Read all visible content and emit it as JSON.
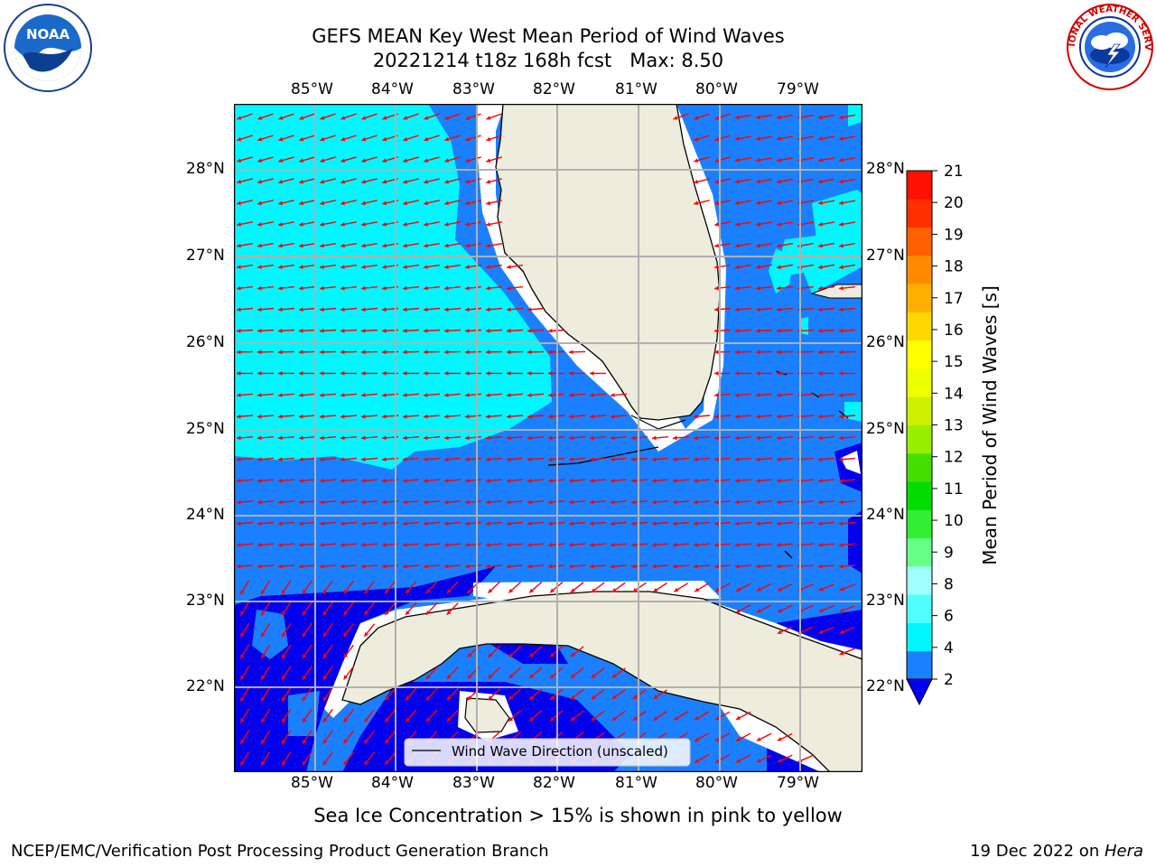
{
  "title": {
    "line1": "GEFS MEAN Key West Mean Period of Wind Waves",
    "line2": "20221214 t18z 168h fcst   Max: 8.50"
  },
  "logos": {
    "noaa_text": "NOAA",
    "noaa_ring": "NATIONAL OCEANIC AND ATMOSPHERIC ADMINISTRATION · U.S. DEPARTMENT OF COMMERCE",
    "nws_ring": "NATIONAL WEATHER SERVICE"
  },
  "map": {
    "lon_labels": [
      "85°W",
      "84°W",
      "83°W",
      "82°W",
      "81°W",
      "80°W",
      "79°W"
    ],
    "lat_labels": [
      "28°N",
      "27°N",
      "26°N",
      "25°N",
      "24°N",
      "23°N",
      "22°N"
    ],
    "legend_label": "Wind Wave Direction (unscaled)",
    "colors": {
      "land": "#eeecdd",
      "period_0_2": "#0000ee",
      "period_2_4": "#1a80ff",
      "period_4_6": "#00f7ff",
      "arrow": "#ff0000",
      "grid": "#b0b0b0"
    }
  },
  "colorbar": {
    "label": "Mean Period of Wind Waves [s]",
    "ticks": [
      "2",
      "4",
      "6",
      "8",
      "9",
      "10",
      "11",
      "12",
      "13",
      "14",
      "15",
      "16",
      "17",
      "18",
      "19",
      "20",
      "21"
    ],
    "bands": [
      "#1a80ff",
      "#00f7ff",
      "#50ffff",
      "#a0ffff",
      "#66ff88",
      "#33ee33",
      "#00dd00",
      "#44dd00",
      "#99ee00",
      "#ccf000",
      "#eeff00",
      "#ffff00",
      "#ffd700",
      "#ffb000",
      "#ff8c00",
      "#ff6000",
      "#ff3000",
      "#ff1000"
    ],
    "extend_color": "#0000ee"
  },
  "notes": {
    "sea_ice": "Sea Ice Concentration > 15% is shown in pink to yellow",
    "credit": "NCEP/EMC/Verification Post Processing Product Generation Branch",
    "date": "19 Dec 2022 on ",
    "machine": "Hera"
  }
}
